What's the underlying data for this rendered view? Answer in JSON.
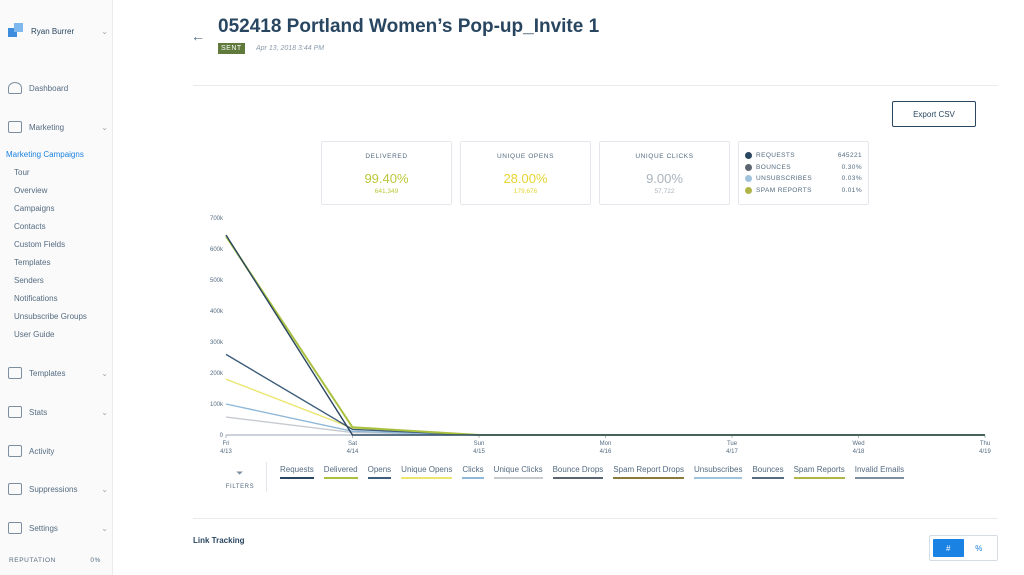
{
  "sidebar": {
    "user_name": "Ryan Burrer",
    "nav": [
      {
        "label": "Dashboard",
        "icon": "dashboard-icon"
      },
      {
        "label": "Marketing",
        "icon": "megaphone-icon"
      },
      {
        "label": "Templates",
        "icon": "templates-icon"
      },
      {
        "label": "Stats",
        "icon": "stats-icon"
      },
      {
        "label": "Activity",
        "icon": "activity-icon"
      },
      {
        "label": "Suppressions",
        "icon": "suppressions-icon"
      },
      {
        "label": "Settings",
        "icon": "settings-icon"
      }
    ],
    "section_label": "Marketing Campaigns",
    "sub_items": [
      "Tour",
      "Overview",
      "Campaigns",
      "Contacts",
      "Custom Fields",
      "Templates",
      "Senders",
      "Notifications",
      "Unsubscribe Groups",
      "User Guide"
    ],
    "reputation_label": "REPUTATION",
    "reputation_value": "0%"
  },
  "header": {
    "title": "052418 Portland Women’s Pop-up_Invite 1",
    "status": "SENT",
    "date": "Apr 13, 2018 3:44 PM"
  },
  "export_label": "Export CSV",
  "stats": [
    {
      "title": "DELIVERED",
      "pct": "99.40%",
      "count": "641,349",
      "color": "#bcc83a"
    },
    {
      "title": "UNIQUE OPENS",
      "pct": "28.00%",
      "count": "179,676",
      "color": "#e6d431"
    },
    {
      "title": "UNIQUE CLICKS",
      "pct": "9.00%",
      "count": "57,722",
      "color": "#a9b3bd"
    }
  ],
  "summary": [
    {
      "label": "REQUESTS",
      "value": "645221",
      "color": "#294661"
    },
    {
      "label": "BOUNCES",
      "value": "0.30%",
      "color": "#5b6570"
    },
    {
      "label": "UNSUBSCRIBES",
      "value": "0.03%",
      "color": "#9fc3dd"
    },
    {
      "label": "SPAM REPORTS",
      "value": "0.01%",
      "color": "#b0b54a"
    }
  ],
  "chart_data": {
    "type": "line",
    "categories": [
      "Fri 4/13",
      "Sat 4/14",
      "Sun 4/15",
      "Mon 4/16",
      "Tue 4/17",
      "Wed 4/18",
      "Thu 4/19"
    ],
    "y_ticks": [
      "0",
      "100k",
      "200k",
      "300k",
      "400k",
      "500k",
      "600k",
      "700k"
    ],
    "ylim": [
      0,
      700000
    ],
    "series": [
      {
        "name": "Requests",
        "color": "#294661",
        "values": [
          645000,
          0,
          0,
          0,
          0,
          0,
          0
        ]
      },
      {
        "name": "Delivered",
        "color": "#a9c13f",
        "values": [
          641000,
          25000,
          0,
          0,
          0,
          0,
          0
        ]
      },
      {
        "name": "Opens",
        "color": "#3d5d7a",
        "values": [
          260000,
          18000,
          0,
          0,
          0,
          0,
          0
        ]
      },
      {
        "name": "Unique Opens",
        "color": "#ebe670",
        "values": [
          180000,
          22000,
          0,
          0,
          0,
          0,
          0
        ]
      },
      {
        "name": "Clicks",
        "color": "#8fb8d8",
        "values": [
          100000,
          12000,
          0,
          0,
          0,
          0,
          0
        ]
      },
      {
        "name": "Unique Clicks",
        "color": "#c6cacf",
        "values": [
          58000,
          8000,
          0,
          0,
          0,
          0,
          0
        ]
      }
    ],
    "grid": false
  },
  "filters_label": "FILTERS",
  "series_tags": [
    {
      "label": "Requests",
      "color": "#294661"
    },
    {
      "label": "Delivered",
      "color": "#a9c13f"
    },
    {
      "label": "Opens",
      "color": "#3d5d7a"
    },
    {
      "label": "Unique Opens",
      "color": "#ebe670"
    },
    {
      "label": "Clicks",
      "color": "#8fb8d8"
    },
    {
      "label": "Unique Clicks",
      "color": "#c6cacf"
    },
    {
      "label": "Bounce Drops",
      "color": "#5b6570"
    },
    {
      "label": "Spam Report Drops",
      "color": "#8c7a3b"
    },
    {
      "label": "Unsubscribes",
      "color": "#9fc3dd"
    },
    {
      "label": "Bounces",
      "color": "#546b81"
    },
    {
      "label": "Spam Reports",
      "color": "#b0b54a"
    },
    {
      "label": "Invalid Emails",
      "color": "#7d8e9f"
    }
  ],
  "link_tracking_label": "Link Tracking",
  "toggle": {
    "count_label": "#",
    "percent_label": "%"
  }
}
